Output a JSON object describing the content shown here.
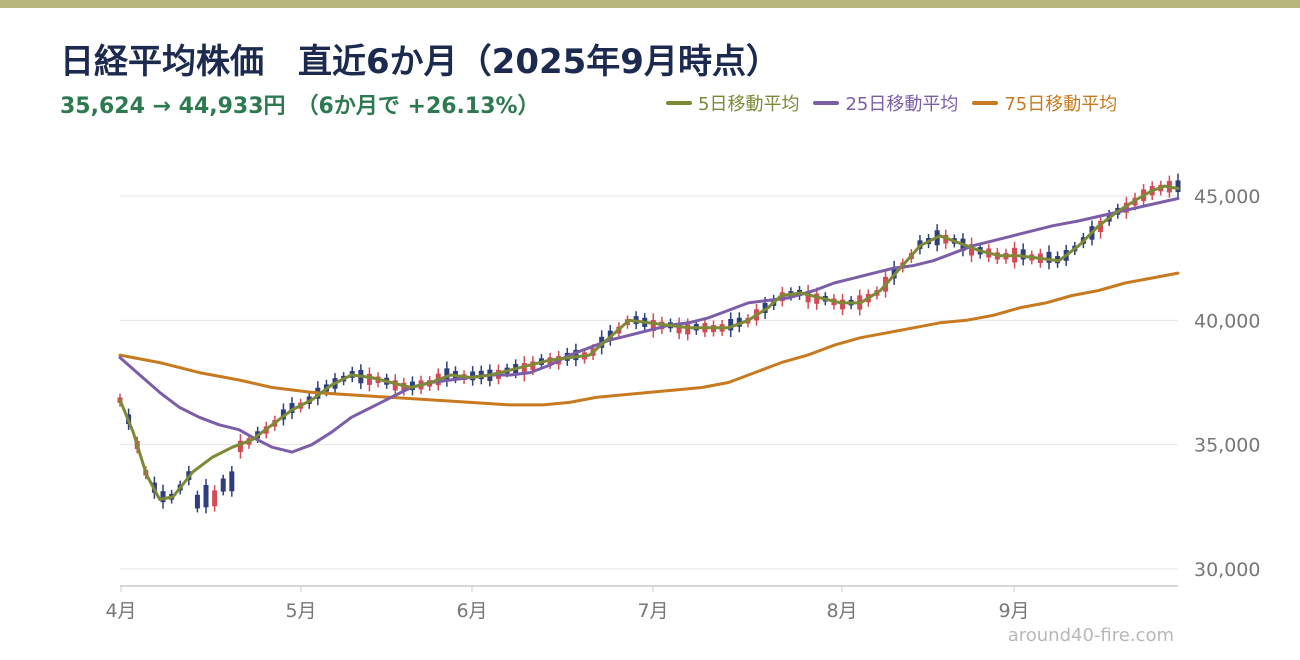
{
  "colors": {
    "top_bar": "#b7b67c",
    "title": "#1b2a4e",
    "subtitle": "#2d7a50",
    "up_candle": "#d24b57",
    "down_candle": "#2e3e7e",
    "ma5": "#7d8a35",
    "ma25": "#7b5ea7",
    "ma75": "#c77a1f",
    "grid": "#e6e6e6",
    "axis": "#cccccc",
    "tick": "#777777",
    "watermark": "#b8b8b8"
  },
  "header": {
    "title": "日経平均株価　直近6か月（2025年9月時点）",
    "subtitle": "35,624 → 44,933円　（6か月で +26.13%）"
  },
  "watermark": "around40-fire.com",
  "chart_data": {
    "type": "candlestick",
    "title": "日経平均株価　直近6か月（2025年9月時点）",
    "subtitle": "35,624 → 44,933円　（6か月で +26.13%）",
    "legend": [
      {
        "name": "5日移動平均",
        "color": "#7d8a35"
      },
      {
        "name": "25日移動平均",
        "color": "#7b5ea7"
      },
      {
        "name": "75日移動平均",
        "color": "#c77a1f"
      }
    ],
    "legend_position": "top-right",
    "x_ticks": [
      "4月",
      "5月",
      "6月",
      "7月",
      "8月",
      "9月"
    ],
    "y_ticks": [
      30000,
      35000,
      40000,
      45000
    ],
    "y_tick_labels": [
      "30,000",
      "35,000",
      "40,000",
      "45,000"
    ],
    "y_axis_side": "right",
    "ylim": [
      29300,
      46800
    ],
    "grid": true,
    "series_ma": {
      "ma5": [
        [
          0,
          36800
        ],
        [
          4,
          35500
        ],
        [
          8,
          33800
        ],
        [
          12,
          32800
        ],
        [
          16,
          32900
        ],
        [
          22,
          33900
        ],
        [
          28,
          34500
        ],
        [
          34,
          34900
        ],
        [
          40,
          35200
        ],
        [
          46,
          35800
        ],
        [
          52,
          36400
        ],
        [
          58,
          36800
        ],
        [
          64,
          37400
        ],
        [
          70,
          37800
        ],
        [
          76,
          37700
        ],
        [
          82,
          37500
        ],
        [
          88,
          37300
        ],
        [
          94,
          37500
        ],
        [
          100,
          37800
        ],
        [
          106,
          37700
        ],
        [
          112,
          37800
        ],
        [
          118,
          38000
        ],
        [
          124,
          38200
        ],
        [
          130,
          38400
        ],
        [
          136,
          38500
        ],
        [
          142,
          38600
        ],
        [
          148,
          39300
        ],
        [
          154,
          40000
        ],
        [
          160,
          39900
        ],
        [
          166,
          39800
        ],
        [
          172,
          39700
        ],
        [
          178,
          39700
        ],
        [
          184,
          39700
        ],
        [
          190,
          40000
        ],
        [
          196,
          40500
        ],
        [
          200,
          41000
        ],
        [
          206,
          41100
        ],
        [
          212,
          40900
        ],
        [
          218,
          40700
        ],
        [
          224,
          40700
        ],
        [
          230,
          41200
        ],
        [
          236,
          42100
        ],
        [
          242,
          43000
        ],
        [
          248,
          43400
        ],
        [
          254,
          43100
        ],
        [
          260,
          42800
        ],
        [
          266,
          42600
        ],
        [
          272,
          42600
        ],
        [
          278,
          42500
        ],
        [
          284,
          42400
        ],
        [
          290,
          43000
        ],
        [
          296,
          43800
        ],
        [
          302,
          44400
        ],
        [
          308,
          44900
        ],
        [
          312,
          45200
        ],
        [
          316,
          45400
        ],
        [
          320,
          45300
        ]
      ],
      "ma25": [
        [
          0,
          38500
        ],
        [
          6,
          37800
        ],
        [
          12,
          37100
        ],
        [
          18,
          36500
        ],
        [
          24,
          36100
        ],
        [
          30,
          35800
        ],
        [
          36,
          35600
        ],
        [
          40,
          35300
        ],
        [
          46,
          34900
        ],
        [
          52,
          34700
        ],
        [
          58,
          35000
        ],
        [
          64,
          35500
        ],
        [
          70,
          36100
        ],
        [
          76,
          36500
        ],
        [
          82,
          36900
        ],
        [
          88,
          37300
        ],
        [
          94,
          37500
        ],
        [
          100,
          37600
        ],
        [
          106,
          37700
        ],
        [
          112,
          37800
        ],
        [
          118,
          37800
        ],
        [
          124,
          37900
        ],
        [
          130,
          38200
        ],
        [
          136,
          38600
        ],
        [
          142,
          38900
        ],
        [
          148,
          39200
        ],
        [
          154,
          39400
        ],
        [
          160,
          39600
        ],
        [
          166,
          39800
        ],
        [
          172,
          39900
        ],
        [
          178,
          40100
        ],
        [
          184,
          40400
        ],
        [
          190,
          40700
        ],
        [
          196,
          40800
        ],
        [
          202,
          40900
        ],
        [
          210,
          41200
        ],
        [
          216,
          41500
        ],
        [
          222,
          41700
        ],
        [
          228,
          41900
        ],
        [
          234,
          42100
        ],
        [
          240,
          42200
        ],
        [
          246,
          42400
        ],
        [
          252,
          42700
        ],
        [
          258,
          43000
        ],
        [
          264,
          43200
        ],
        [
          270,
          43400
        ],
        [
          276,
          43600
        ],
        [
          282,
          43800
        ],
        [
          290,
          44000
        ],
        [
          300,
          44300
        ],
        [
          310,
          44600
        ],
        [
          320,
          44900
        ]
      ],
      "ma75": [
        [
          0,
          38600
        ],
        [
          12,
          38300
        ],
        [
          24,
          37900
        ],
        [
          36,
          37600
        ],
        [
          46,
          37300
        ],
        [
          58,
          37100
        ],
        [
          70,
          37000
        ],
        [
          82,
          36900
        ],
        [
          94,
          36800
        ],
        [
          106,
          36700
        ],
        [
          118,
          36600
        ],
        [
          128,
          36600
        ],
        [
          136,
          36700
        ],
        [
          144,
          36900
        ],
        [
          152,
          37000
        ],
        [
          160,
          37100
        ],
        [
          168,
          37200
        ],
        [
          176,
          37300
        ],
        [
          184,
          37500
        ],
        [
          192,
          37900
        ],
        [
          200,
          38300
        ],
        [
          208,
          38600
        ],
        [
          216,
          39000
        ],
        [
          224,
          39300
        ],
        [
          232,
          39500
        ],
        [
          240,
          39700
        ],
        [
          248,
          39900
        ],
        [
          256,
          40000
        ],
        [
          264,
          40200
        ],
        [
          272,
          40500
        ],
        [
          280,
          40700
        ],
        [
          288,
          41000
        ],
        [
          296,
          41200
        ],
        [
          304,
          41500
        ],
        [
          312,
          41700
        ],
        [
          320,
          41900
        ]
      ]
    }
  }
}
